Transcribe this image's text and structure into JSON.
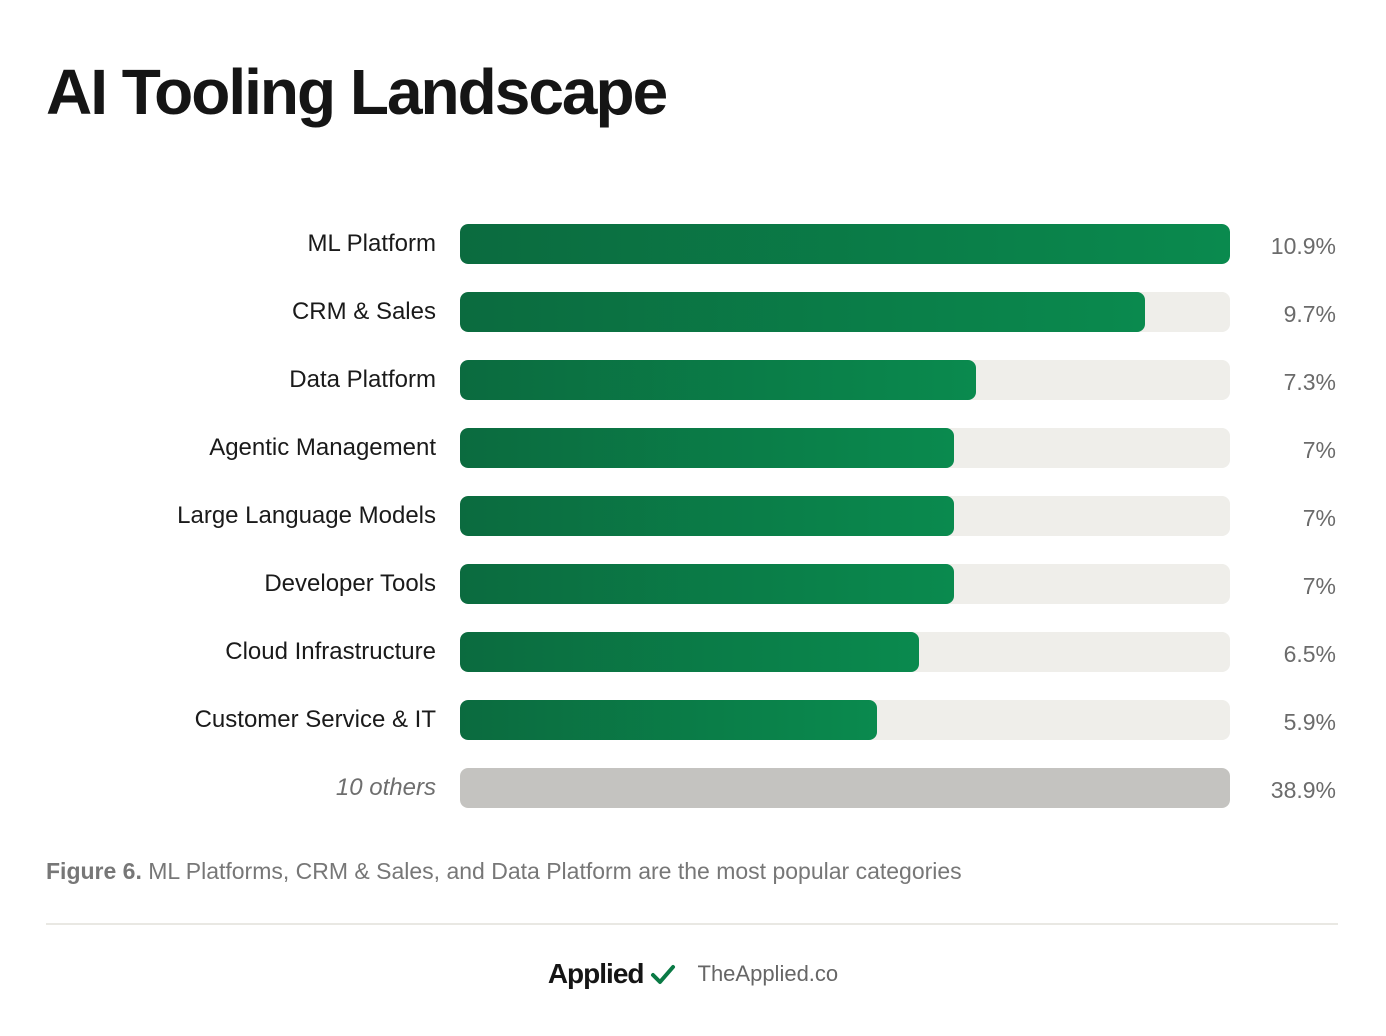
{
  "header": {
    "title": "AI Tooling Landscape"
  },
  "chart_data": {
    "type": "bar",
    "orientation": "horizontal",
    "title": "AI Tooling Landscape",
    "xlim": [
      0,
      10.9
    ],
    "grid": false,
    "categories": [
      "ML Platform",
      "CRM & Sales",
      "Data Platform",
      "Agentic Management",
      "Large Language Models",
      "Developer Tools",
      "Cloud Infrastructure",
      "Customer Service & IT",
      "10 others"
    ],
    "values": [
      10.9,
      9.7,
      7.3,
      7,
      7,
      7,
      6.5,
      5.9,
      38.9
    ],
    "value_labels": [
      "10.9%",
      "9.7%",
      "7.3%",
      "7%",
      "7%",
      "7%",
      "6.5%",
      "5.9%",
      "38.9%"
    ],
    "colors": {
      "bar_start": "#0b6b3f",
      "bar_end": "#0a8a4e",
      "track": "#efeeea",
      "others": "#c4c3c0"
    },
    "others_index": 8
  },
  "caption": {
    "figure": "Figure 6.",
    "text": "ML Platforms, CRM & Sales, and Data Platform are the most popular categories"
  },
  "footer": {
    "brand": "Applied",
    "brand_icon": "check-icon",
    "brand_icon_color": "#0a7a45",
    "site": "TheApplied.co"
  }
}
